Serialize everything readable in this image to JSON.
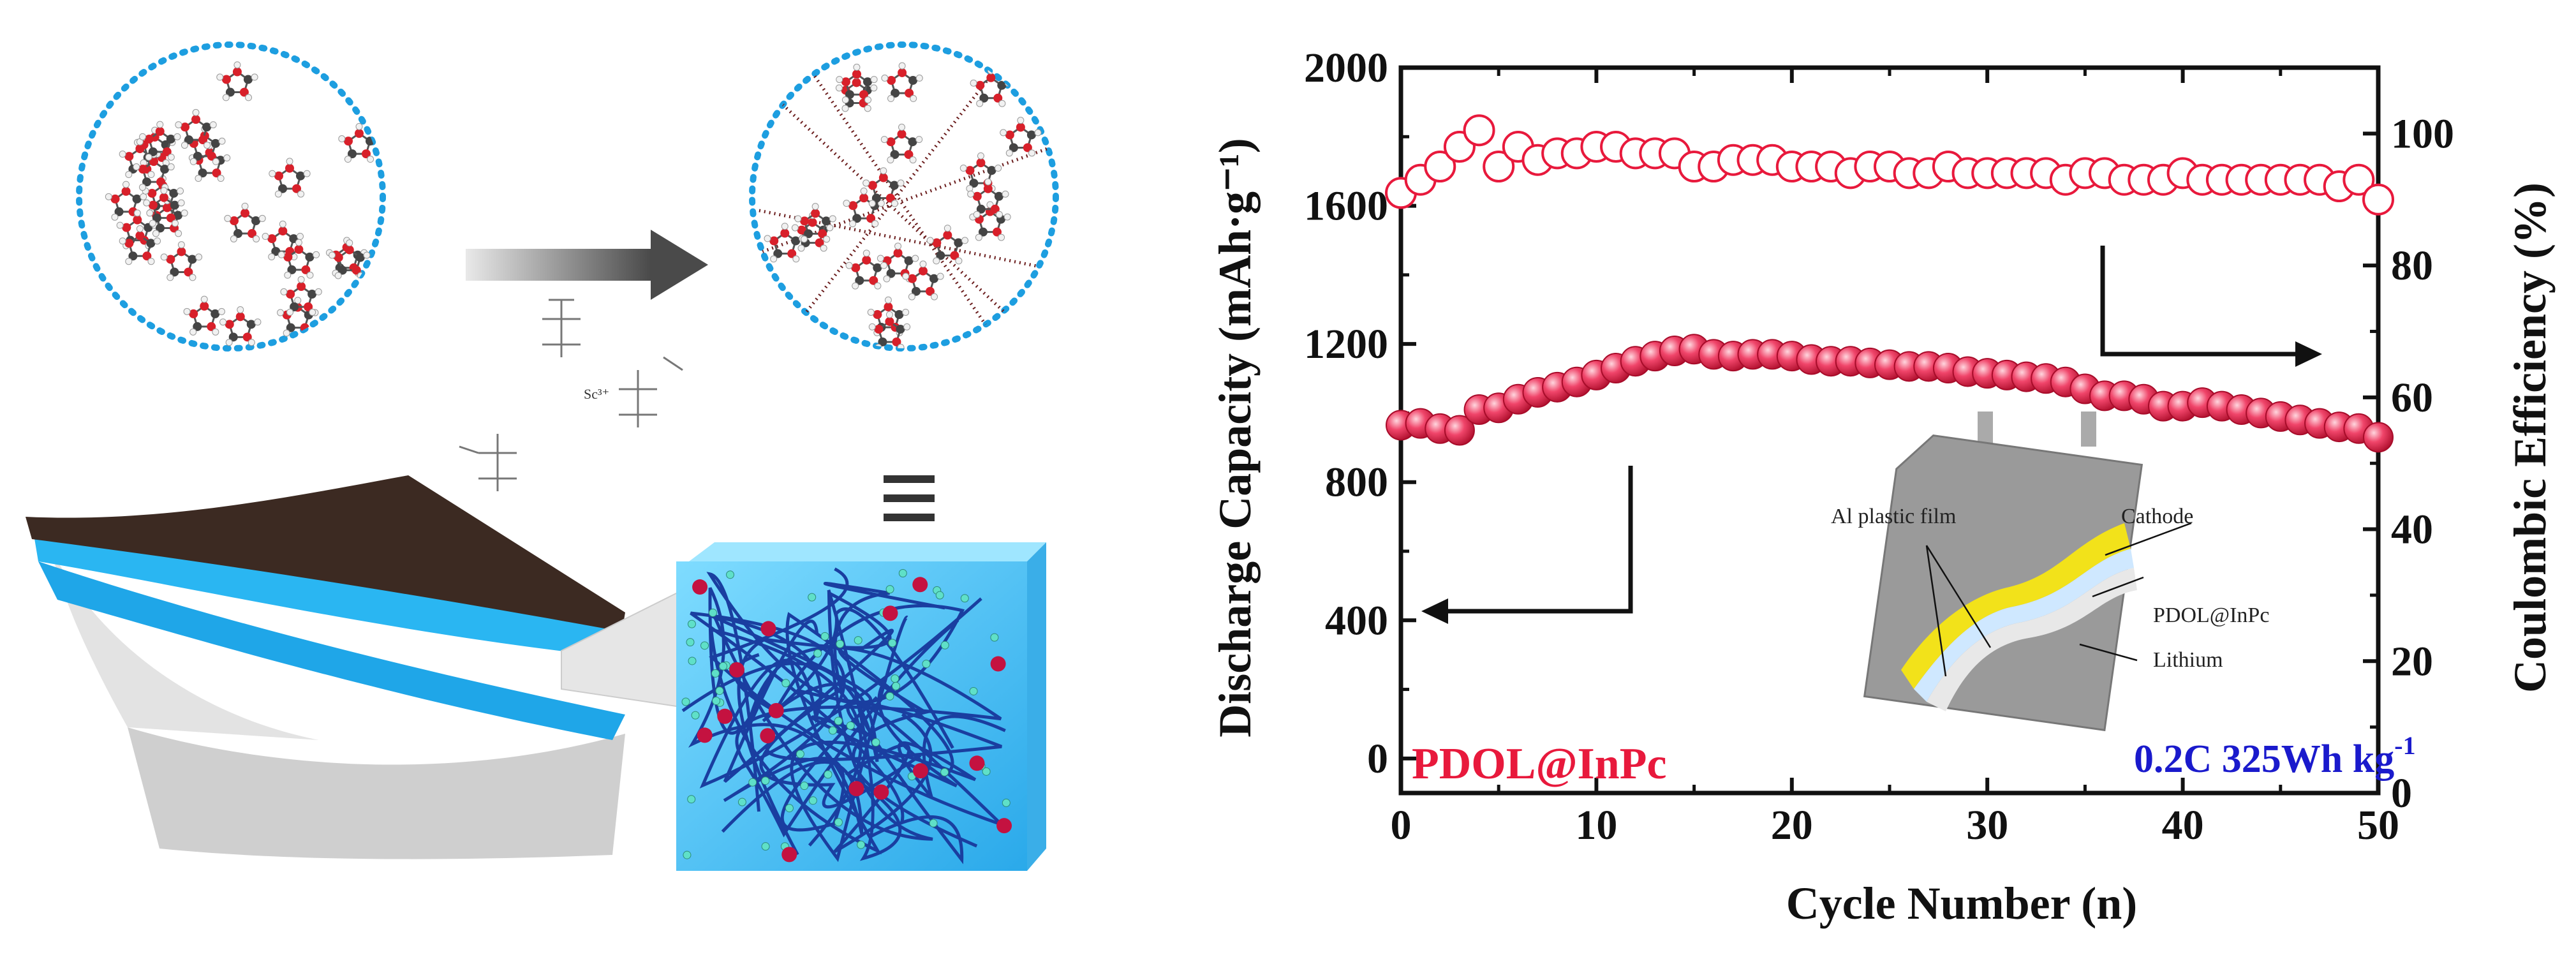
{
  "figure": {
    "schematic": {
      "ion_label": "Sc³⁺"
    },
    "inset": {
      "labels": {
        "al_film": "Al plastic film",
        "cathode": "Cathode",
        "electrolyte": "PDOL@InPc",
        "lithium": "Lithium"
      }
    }
  },
  "chart_data": {
    "type": "scatter",
    "xlabel": "Cycle Number (n)",
    "ylabel_left": "Discharge Capacity (mAh·g⁻¹)",
    "ylabel_right": "Coulombic Efficiency (%)",
    "xlim": [
      0,
      50
    ],
    "ylim_left": [
      -100,
      2000
    ],
    "ylim_right": [
      0,
      110
    ],
    "x_ticks": [
      0,
      10,
      20,
      30,
      40,
      50
    ],
    "y_left_ticks": [
      0,
      400,
      800,
      1200,
      1600,
      2000
    ],
    "y_right_ticks": [
      0,
      20,
      40,
      60,
      80,
      100
    ],
    "legend_label": "PDOL@InPc",
    "condition_label": "0.2C 325Wh kg",
    "condition_superscript": "-1",
    "colors": {
      "series": "#e8193c",
      "condition": "#1a1acc",
      "axis": "#111111"
    },
    "series": [
      {
        "name": "Discharge Capacity",
        "axis": "left",
        "marker": "filled-circle",
        "x": [
          0,
          1,
          2,
          3,
          4,
          5,
          6,
          7,
          8,
          9,
          10,
          11,
          12,
          13,
          14,
          15,
          16,
          17,
          18,
          19,
          20,
          21,
          22,
          23,
          24,
          25,
          26,
          27,
          28,
          29,
          30,
          31,
          32,
          33,
          34,
          35,
          36,
          37,
          38,
          39,
          40,
          41,
          42,
          43,
          44,
          45,
          46,
          47,
          48,
          49,
          50
        ],
        "values": [
          965,
          970,
          955,
          950,
          1010,
          1015,
          1040,
          1060,
          1075,
          1090,
          1110,
          1130,
          1150,
          1165,
          1180,
          1185,
          1170,
          1165,
          1170,
          1170,
          1165,
          1155,
          1150,
          1150,
          1145,
          1140,
          1135,
          1135,
          1130,
          1120,
          1115,
          1110,
          1105,
          1100,
          1090,
          1070,
          1050,
          1050,
          1040,
          1020,
          1020,
          1030,
          1020,
          1010,
          1000,
          990,
          980,
          970,
          960,
          955,
          930
        ]
      },
      {
        "name": "Coulombic Efficiency",
        "axis": "right",
        "marker": "open-circle",
        "x": [
          0,
          1,
          2,
          3,
          4,
          5,
          6,
          7,
          8,
          9,
          10,
          11,
          12,
          13,
          14,
          15,
          16,
          17,
          18,
          19,
          20,
          21,
          22,
          23,
          24,
          25,
          26,
          27,
          28,
          29,
          30,
          31,
          32,
          33,
          34,
          35,
          36,
          37,
          38,
          39,
          40,
          41,
          42,
          43,
          44,
          45,
          46,
          47,
          48,
          49,
          50
        ],
        "values": [
          91,
          93,
          95,
          98,
          100.5,
          95,
          98,
          96,
          97,
          97,
          98,
          98,
          97,
          97,
          97,
          95,
          95,
          96,
          96,
          96,
          95,
          95,
          95,
          94,
          95,
          95,
          94,
          94,
          95,
          94,
          94,
          94,
          94,
          94,
          93,
          94,
          94,
          93,
          93,
          93,
          94,
          93,
          93,
          93,
          93,
          93,
          93,
          93,
          92,
          93,
          90
        ]
      }
    ]
  }
}
